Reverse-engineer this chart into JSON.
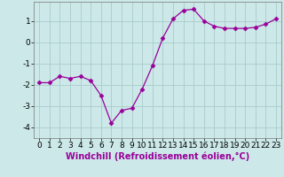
{
  "x": [
    0,
    1,
    2,
    3,
    4,
    5,
    6,
    7,
    8,
    9,
    10,
    11,
    12,
    13,
    14,
    15,
    16,
    17,
    18,
    19,
    20,
    21,
    22,
    23
  ],
  "y": [
    -1.9,
    -1.9,
    -1.6,
    -1.7,
    -1.6,
    -1.8,
    -2.5,
    -3.8,
    -3.2,
    -3.1,
    -2.2,
    -1.1,
    0.2,
    1.1,
    1.5,
    1.55,
    1.0,
    0.75,
    0.65,
    0.65,
    0.65,
    0.7,
    0.85,
    1.1
  ],
  "line_color": "#990099",
  "marker": "D",
  "marker_size": 2.5,
  "bg_color": "#cce8e8",
  "grid_color": "#aacccc",
  "xlabel": "Windchill (Refroidissement éolien,°C)",
  "xlabel_fontsize": 7,
  "tick_fontsize": 6.5,
  "ylim": [
    -4.5,
    1.9
  ],
  "xlim": [
    -0.5,
    23.5
  ],
  "yticks": [
    -4,
    -3,
    -2,
    -1,
    0,
    1
  ],
  "xticks": [
    0,
    1,
    2,
    3,
    4,
    5,
    6,
    7,
    8,
    9,
    10,
    11,
    12,
    13,
    14,
    15,
    16,
    17,
    18,
    19,
    20,
    21,
    22,
    23
  ]
}
